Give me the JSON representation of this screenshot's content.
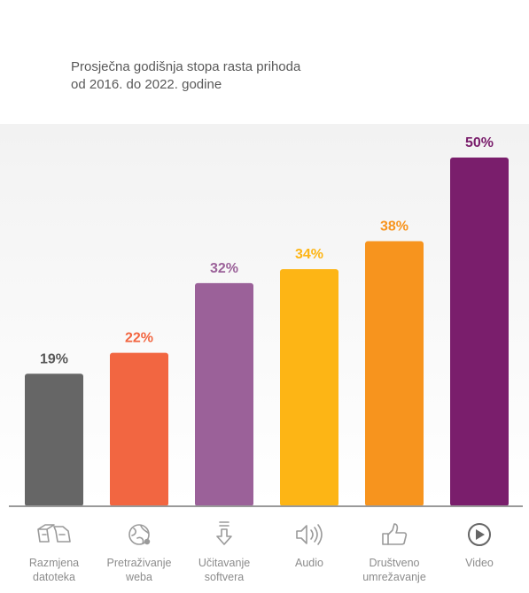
{
  "chart_data": {
    "type": "bar",
    "title_lines": [
      "Prosječna godišnja stopa rasta prihoda",
      "od 2016. do 2022. godine"
    ],
    "categories": [
      {
        "label_lines": [
          "Razmjena",
          "datoteka"
        ],
        "icon": "file-exchange-icon"
      },
      {
        "label_lines": [
          "Pretraživanje",
          "weba"
        ],
        "icon": "globe-icon"
      },
      {
        "label_lines": [
          "Učitavanje",
          "softvera"
        ],
        "icon": "download-arrow-icon"
      },
      {
        "label_lines": [
          "Audio"
        ],
        "icon": "speaker-icon"
      },
      {
        "label_lines": [
          "Društveno",
          "umrežavanje"
        ],
        "icon": "thumbs-up-icon"
      },
      {
        "label_lines": [
          "Video"
        ],
        "icon": "play-circle-icon"
      }
    ],
    "values": [
      19,
      22,
      32,
      34,
      38,
      50
    ],
    "value_labels": [
      "19%",
      "22%",
      "32%",
      "34%",
      "38%",
      "50%"
    ],
    "bar_colors": [
      "#666666",
      "#F26641",
      "#9B6199",
      "#FDB515",
      "#F7941E",
      "#7A1E6C"
    ],
    "label_colors": [
      "#595959",
      "#F26641",
      "#9B6199",
      "#FDB515",
      "#F7941E",
      "#7A1E6C"
    ],
    "ylim": [
      0,
      50
    ],
    "grid": false,
    "axis_color": "#9a9a9a",
    "background_top": "#f2f2f2",
    "background_bottom": "#ffffff"
  }
}
